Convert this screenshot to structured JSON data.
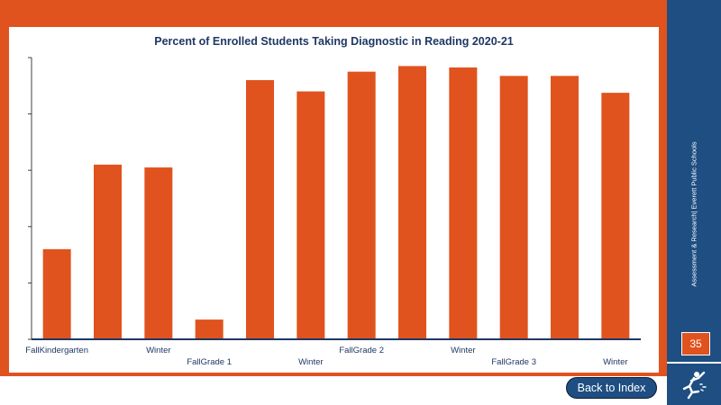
{
  "header": {
    "title": "Percent of Enrolled Students Taking Diagnostic in Reading 2020-21"
  },
  "sidebar": {
    "org_text": "Assessment & Research| Everett Public Schools",
    "page_number": "35",
    "logo_icon": "runner-logo-icon"
  },
  "nav": {
    "back_label": "Back to Index"
  },
  "colors": {
    "frame": "#e0531e",
    "bar": "#e0531e",
    "sidebar": "#1e4e82",
    "title": "#1f3864"
  },
  "chart_data": {
    "type": "bar",
    "title": "Percent of Enrolled Students Taking Diagnostic in Reading 2020-21",
    "categories": [
      "Fall",
      "",
      "Winter",
      "Fall",
      "",
      "Winter",
      "Fall",
      "",
      "Winter",
      "Fall",
      "",
      "Winter"
    ],
    "group_labels": [
      "Kindergarten",
      "Grade 1",
      "Grade 2",
      "Grade 3"
    ],
    "tick_labels": [
      {
        "text": "FallKindergarten",
        "index": 0,
        "row": 1
      },
      {
        "text": "Winter",
        "index": 2,
        "row": 1
      },
      {
        "text": "FallGrade 1",
        "index": 3,
        "row": 2
      },
      {
        "text": "Winter",
        "index": 5,
        "row": 2
      },
      {
        "text": "FallGrade 2",
        "index": 6,
        "row": 1
      },
      {
        "text": "Winter",
        "index": 8,
        "row": 1
      },
      {
        "text": "FallGrade 3",
        "index": 9,
        "row": 2
      },
      {
        "text": "Winter",
        "index": 11,
        "row": 2
      }
    ],
    "values": [
      32,
      62,
      61,
      7,
      92,
      88,
      95,
      97,
      96.5,
      93.5,
      93.5,
      87.5
    ],
    "ylim": [
      0,
      100
    ],
    "y_ticks": [
      0,
      20,
      40,
      60,
      80,
      100
    ],
    "y_tick_labels_shown": false,
    "xlabel": "",
    "ylabel": "",
    "grid": false,
    "legend": "none"
  }
}
